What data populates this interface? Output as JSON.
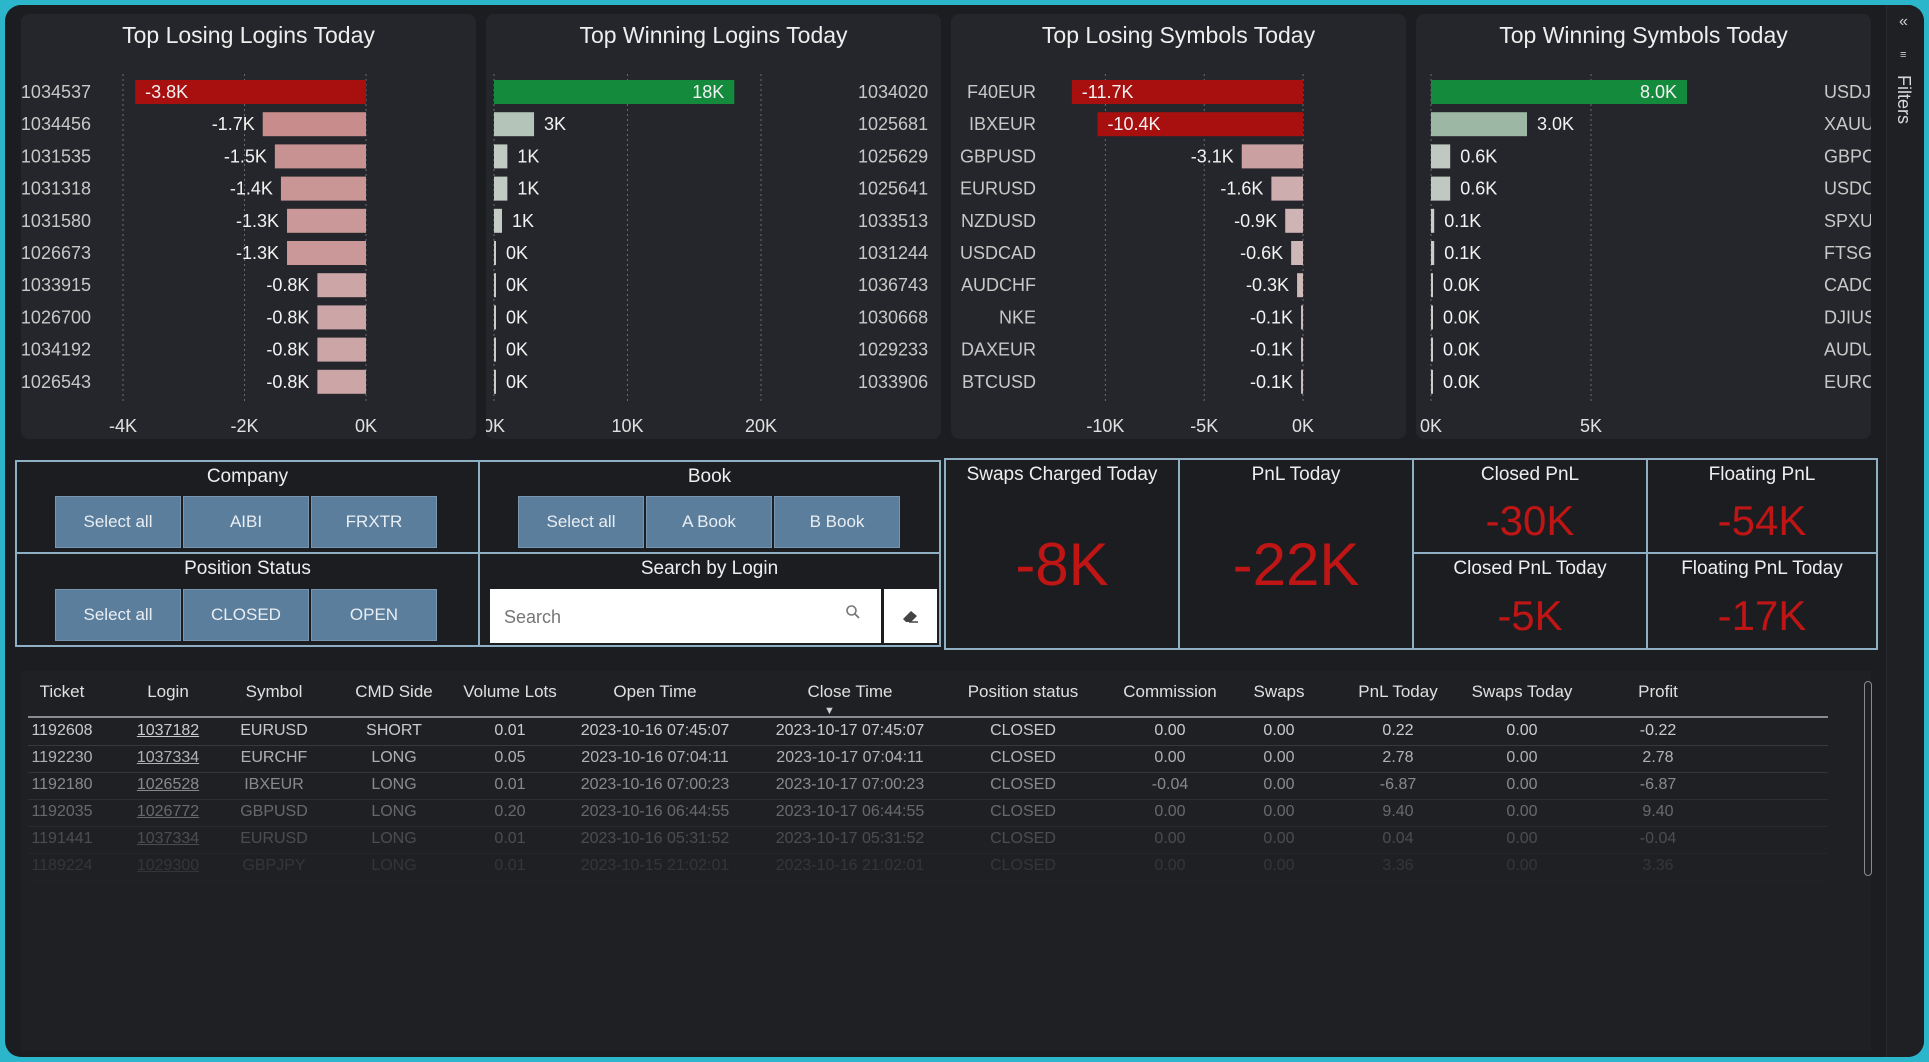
{
  "sidebar": {
    "filters_label": "Filters"
  },
  "colors": {
    "loss_strong": "#a80f0f",
    "loss_light": "#c98a8a",
    "win_strong": "#148a3c",
    "win_light": "#8eb196",
    "kpi_red": "#c01515"
  },
  "charts": [
    {
      "title": "Top Losing Logins Today",
      "labels": [
        "1034537",
        "1034456",
        "1031535",
        "1031318",
        "1031580",
        "1026673",
        "1033915",
        "1026700",
        "1034192",
        "1026543"
      ],
      "values": [
        -3.8,
        -1.7,
        -1.5,
        -1.4,
        -1.3,
        -1.3,
        -0.8,
        -0.8,
        -0.8,
        -0.8
      ],
      "value_labels": [
        "-3.8K",
        "-1.7K",
        "-1.5K",
        "-1.4K",
        "-1.3K",
        "-1.3K",
        "-0.8K",
        "-0.8K",
        "-0.8K",
        "-0.8K"
      ],
      "ticks": [
        "-4K",
        "-2K",
        "0K"
      ]
    },
    {
      "title": "Top Winning Logins Today",
      "labels": [
        "1034020",
        "1025681",
        "1025629",
        "1025641",
        "1033513",
        "1031244",
        "1036743",
        "1030668",
        "1029233",
        "1033906"
      ],
      "values": [
        18,
        3,
        1,
        1,
        0.6,
        0.1,
        0.1,
        0.1,
        0.1,
        0.1
      ],
      "value_labels": [
        "18K",
        "3K",
        "1K",
        "1K",
        "1K",
        "0K",
        "0K",
        "0K",
        "0K",
        "0K"
      ],
      "ticks": [
        "0K",
        "10K",
        "20K"
      ]
    },
    {
      "title": "Top Losing Symbols Today",
      "labels": [
        "F40EUR",
        "IBXEUR",
        "GBPUSD",
        "EURUSD",
        "NZDUSD",
        "USDCAD",
        "AUDCHF",
        "NKE",
        "DAXEUR",
        "BTCUSD"
      ],
      "values": [
        -11.7,
        -10.4,
        -3.1,
        -1.6,
        -0.9,
        -0.6,
        -0.3,
        -0.1,
        -0.1,
        -0.1
      ],
      "value_labels": [
        "-11.7K",
        "-10.4K",
        "-3.1K",
        "-1.6K",
        "-0.9K",
        "-0.6K",
        "-0.3K",
        "-0.1K",
        "-0.1K",
        "-0.1K"
      ],
      "ticks": [
        "-10K",
        "-5K",
        "0K"
      ]
    },
    {
      "title": "Top Winning Symbols Today",
      "labels": [
        "USDJPY",
        "XAUUSD",
        "GBPCAD",
        "USDCHF",
        "SPXUSD",
        "FTSGBP",
        "CADCHF",
        "DJIUSD",
        "AUDUSD",
        "EURCAD"
      ],
      "values": [
        8.0,
        3.0,
        0.6,
        0.6,
        0.1,
        0.1,
        0.04,
        0.03,
        0.03,
        0.03
      ],
      "value_labels": [
        "8.0K",
        "3.0K",
        "0.6K",
        "0.6K",
        "0.1K",
        "0.1K",
        "0.0K",
        "0.0K",
        "0.0K",
        "0.0K"
      ],
      "ticks": [
        "0K",
        "5K"
      ]
    }
  ],
  "filters": {
    "company": {
      "title": "Company",
      "buttons": [
        "Select all",
        "AIBI",
        "FRXTR"
      ]
    },
    "book": {
      "title": "Book",
      "buttons": [
        "Select all",
        "A Book",
        "B Book"
      ]
    },
    "position_status": {
      "title": "Position Status",
      "buttons": [
        "Select all",
        "CLOSED",
        "OPEN"
      ]
    },
    "search": {
      "title": "Search by Login",
      "placeholder": "Search"
    }
  },
  "kpis": {
    "swaps_charged": {
      "title": "Swaps Charged Today",
      "value": "-8K"
    },
    "pnl_today": {
      "title": "PnL Today",
      "value": "-22K"
    },
    "closed_pnl": {
      "title": "Closed PnL",
      "value": "-30K"
    },
    "floating_pnl": {
      "title": "Floating PnL",
      "value": "-54K"
    },
    "closed_pnl_today": {
      "title": "Closed PnL Today",
      "value": "-5K"
    },
    "floating_pnl_today": {
      "title": "Floating PnL Today",
      "value": "-17K"
    }
  },
  "table": {
    "headers": [
      "Ticket",
      "Login",
      "Symbol",
      "CMD Side",
      "Volume Lots",
      "Open Time",
      "Close Time",
      "Position status",
      "Commission",
      "Swaps",
      "PnL Today",
      "Swaps Today",
      "Profit"
    ],
    "rows": [
      [
        "1192608",
        "1037182",
        "EURUSD",
        "SHORT",
        "0.01",
        "2023-10-16 07:45:07",
        "2023-10-17 07:45:07",
        "CLOSED",
        "0.00",
        "0.00",
        "0.22",
        "0.00",
        "-0.22"
      ],
      [
        "1192230",
        "1037334",
        "EURCHF",
        "LONG",
        "0.05",
        "2023-10-16 07:04:11",
        "2023-10-17 07:04:11",
        "CLOSED",
        "0.00",
        "0.00",
        "2.78",
        "0.00",
        "2.78"
      ],
      [
        "1192180",
        "1026528",
        "IBXEUR",
        "LONG",
        "0.01",
        "2023-10-16 07:00:23",
        "2023-10-17 07:00:23",
        "CLOSED",
        "-0.04",
        "0.00",
        "-6.87",
        "0.00",
        "-6.87"
      ],
      [
        "1192035",
        "1026772",
        "GBPUSD",
        "LONG",
        "0.20",
        "2023-10-16 06:44:55",
        "2023-10-17 06:44:55",
        "CLOSED",
        "0.00",
        "0.00",
        "9.40",
        "0.00",
        "9.40"
      ],
      [
        "1191441",
        "1037334",
        "EURUSD",
        "LONG",
        "0.01",
        "2023-10-16 05:31:52",
        "2023-10-17 05:31:52",
        "CLOSED",
        "0.00",
        "0.00",
        "0.04",
        "0.00",
        "-0.04"
      ],
      [
        "1189224",
        "1029300",
        "GBPJPY",
        "LONG",
        "0.01",
        "2023-10-15 21:02:01",
        "2023-10-16 21:02:01",
        "CLOSED",
        "0.00",
        "0.00",
        "3.36",
        "0.00",
        "3.36"
      ]
    ]
  }
}
